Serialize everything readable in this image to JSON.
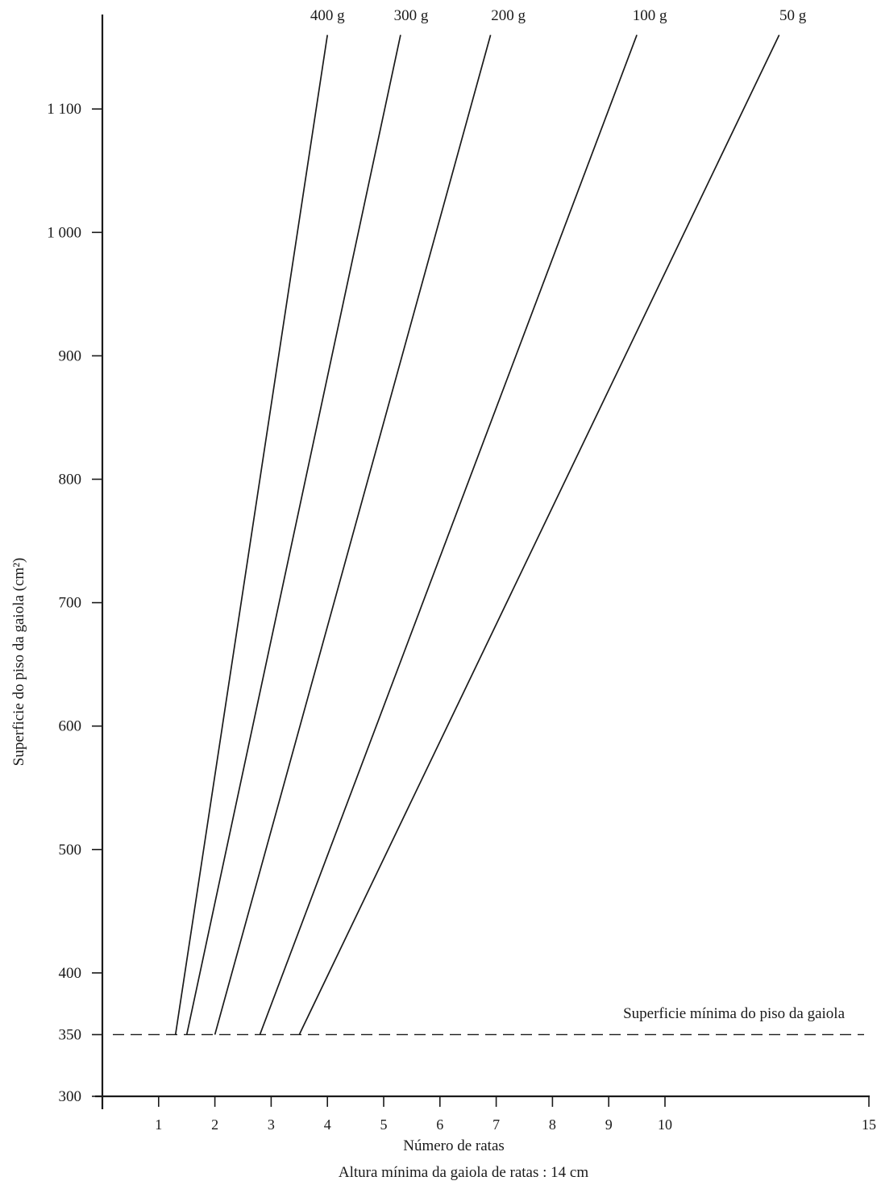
{
  "chart_data": {
    "type": "line",
    "xlabel": "Número de ratas",
    "ylabel": "Superficie do piso da gaiola (cm²)",
    "note": "Altura mínima da gaiola de ratas : 14 cm",
    "xlim": [
      0,
      15
    ],
    "ylim": [
      300,
      1175
    ],
    "x_axis_break_after": 10,
    "grid": false,
    "legend": "none",
    "x_ticks": {
      "values": [
        1,
        2,
        3,
        4,
        5,
        6,
        7,
        8,
        9,
        10,
        15
      ],
      "labels": [
        "1",
        "2",
        "3",
        "4",
        "5",
        "6",
        "7",
        "8",
        "9",
        "10",
        "15"
      ]
    },
    "y_ticks": {
      "values": [
        300,
        350,
        400,
        500,
        600,
        700,
        800,
        900,
        1000,
        1100
      ],
      "labels": [
        "300",
        "350",
        "400",
        "500",
        "600",
        "700",
        "800",
        "900",
        "1 000",
        "1 100"
      ]
    },
    "series": [
      {
        "name": "400 g",
        "x": [
          1.3,
          4.0
        ],
        "y": [
          350,
          1160
        ]
      },
      {
        "name": "300 g",
        "x": [
          1.5,
          5.3
        ],
        "y": [
          350,
          1160
        ]
      },
      {
        "name": "200 g",
        "x": [
          2.0,
          6.9
        ],
        "y": [
          350,
          1160
        ]
      },
      {
        "name": "100 g",
        "x": [
          2.8,
          9.5
        ],
        "y": [
          350,
          1160
        ]
      },
      {
        "name": "50 g",
        "x": [
          3.5,
          12.8
        ],
        "y": [
          350,
          1160
        ]
      }
    ],
    "reference_line": {
      "y": 350,
      "label": "Superficie mínima do piso da gaiola",
      "style": "dashed"
    },
    "colors": {
      "line": "#1a1a1a",
      "background": "#ffffff"
    }
  }
}
